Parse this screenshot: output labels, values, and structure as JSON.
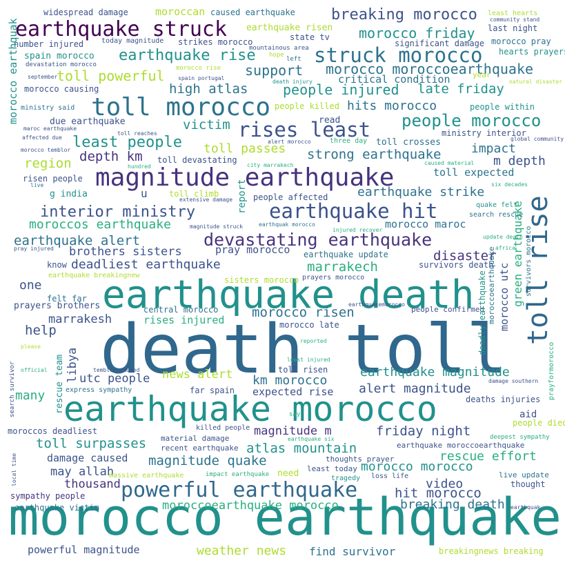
{
  "words": [
    "death toll",
    "morocco earthquake",
    "earthquake death",
    "earthquake morocco",
    "magnitude earthquake",
    "toll morocco",
    "toll rise",
    "earthquake struck",
    "powerful earthquake",
    "rises least",
    "struck morocco",
    "earthquake hit",
    "devastating earthquake",
    "people morocco",
    "breaking morocco",
    "earthquake rise",
    "interior ministry",
    "least people",
    "people injured",
    "morocco moroccoearthquake",
    "morocco friday",
    "toll powerful",
    "support",
    "high atlas",
    "late friday",
    "hits morocco",
    "victim",
    "toll passes",
    "strong earthquake",
    "region",
    "depth km",
    "m depth",
    "impact",
    "earthquake alert",
    "deadliest earthquake",
    "brothers sisters",
    "disaster",
    "marrakech",
    "earthquake strike",
    "moroccos earthquake",
    "morocco maroc",
    "morocco risen",
    "earthquake magnitude",
    "alert magnitude",
    "km morocco",
    "news alert",
    "utc people",
    "libya",
    "help",
    "marrakesh",
    "rises injured",
    "many",
    "one",
    "magnitude m",
    "atlas mountain",
    "friday night",
    "toll surpasses",
    "magnitude quake",
    "rescue effort",
    "morocco morocco",
    "hit morocco",
    "breaking death",
    "video",
    "thousand",
    "may allah",
    "moroccoearthquake morocco",
    "weather news",
    "find survivor",
    "powerful magnitude",
    "earthquake victim",
    "sympathy people",
    "damage caused",
    "toll expected",
    "expected rise",
    "green earthquake",
    "morocco utc",
    "widespread damage",
    "moroccan",
    "caused earthquake",
    "earthquake risen",
    "state tv",
    "last night",
    "morocco pray",
    "hearts prayers",
    "significant damage",
    "critical condition",
    "spain morocco",
    "number injured",
    "today magnitude",
    "strikes morocco",
    "morocco causing",
    "due earthquake",
    "ministry interior",
    "people within",
    "people killed",
    "ministry said",
    "morocco earthquak",
    "pray morocco",
    "earthquake update",
    "sisters morocco",
    "prayers morocco",
    "survivors death",
    "read",
    "g india",
    "toll climb",
    "people affected",
    "rescue team",
    "report",
    "toll crosses",
    "three day",
    "u",
    "risen people",
    "quake felt",
    "search rescue",
    "felt far",
    "prayers brothers",
    "central morocco",
    "morocco late",
    "people confirmed",
    "deadly earthquake",
    "moroccoearthquake",
    "survivors morocco",
    "earthquake breakingnew",
    "know",
    "toll risen",
    "far spain",
    "aid",
    "people died",
    "deaths injuries",
    "moroccos deadliest",
    "material damage",
    "recent earthquake",
    "killed people",
    "thoughts prayer",
    "least today",
    "loss life",
    "tragedy",
    "need",
    "massive earthquake",
    "impact earthquake",
    "live update",
    "thought",
    "breakingnews breaking",
    "deepest sympathy",
    "earthquake moroccoearthquake",
    "prayformorocco",
    "least hearts",
    "community stand",
    "mountainous area",
    "hope",
    "left",
    "devastation morocco",
    "september",
    "spain portugal",
    "death injury",
    "natural disaster",
    "morocco rise",
    "year",
    "maroc earthquake",
    "affected due",
    "toll reaches",
    "global community",
    "morocco temblor",
    "hundred",
    "city marrakech",
    "caused material",
    "six decades",
    "alert morocco",
    "toll devastating",
    "extensive damage",
    "live",
    "magnitude struck",
    "earthquak morocco",
    "injured recover",
    "update death",
    "africa",
    "pray injured",
    "earthquakemorocco",
    "reported",
    "least injured",
    "please",
    "official",
    "temblor caused",
    "search survivor",
    "express sympathy",
    "damage southern",
    "say",
    "earthquake six",
    "local time",
    "earthquak",
    "c"
  ]
}
